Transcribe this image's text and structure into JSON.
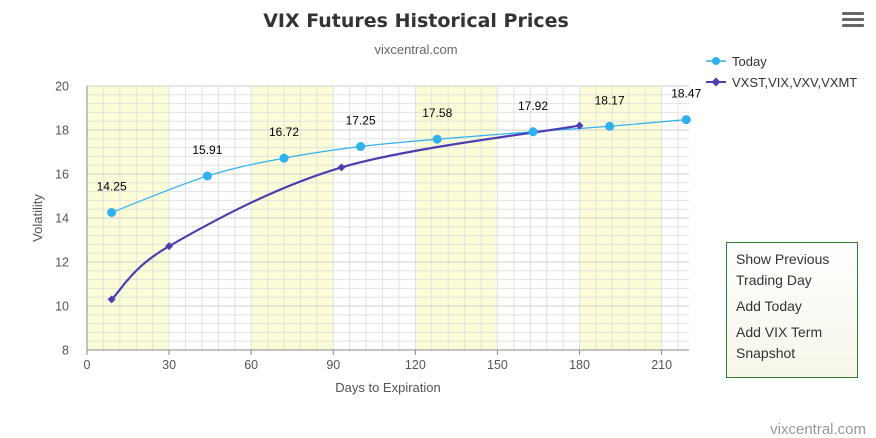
{
  "chart_data": {
    "type": "line",
    "title": "VIX Futures Historical Prices",
    "subtitle": "vixcentral.com",
    "xlabel": "Days to Expiration",
    "ylabel": "Volatility",
    "xlim": [
      0,
      220
    ],
    "ylim": [
      8,
      20
    ],
    "x_ticks": [
      0,
      30,
      60,
      90,
      120,
      150,
      180,
      210
    ],
    "y_ticks": [
      8,
      10,
      12,
      14,
      16,
      18,
      20
    ],
    "highlight_bands": [
      [
        0,
        30
      ],
      [
        60,
        90
      ],
      [
        120,
        150
      ],
      [
        180,
        210
      ]
    ],
    "grid": true,
    "legend_position": "top-right",
    "series": [
      {
        "name": "Today",
        "color": "#2fb0f0",
        "marker": "circle",
        "x": [
          9,
          44,
          72,
          100,
          128,
          163,
          191,
          219
        ],
        "y": [
          14.25,
          15.91,
          16.72,
          17.25,
          17.58,
          17.92,
          18.17,
          18.47
        ],
        "labels": [
          "14.25",
          "15.91",
          "16.72",
          "17.25",
          "17.58",
          "17.92",
          "18.17",
          "18.47"
        ]
      },
      {
        "name": "VXST,VIX,VXV,VXMT",
        "color": "#4b3fb0",
        "marker": "diamond",
        "x": [
          9,
          30,
          93,
          180
        ],
        "y": [
          10.3,
          12.72,
          16.3,
          18.2
        ]
      }
    ]
  },
  "menu": {
    "items": [
      "Show Previous Trading Day",
      "Add Today",
      "Add VIX Term Snapshot"
    ]
  },
  "credit": "vixcentral.com",
  "icons": {
    "menu": "hamburger-menu-icon"
  }
}
